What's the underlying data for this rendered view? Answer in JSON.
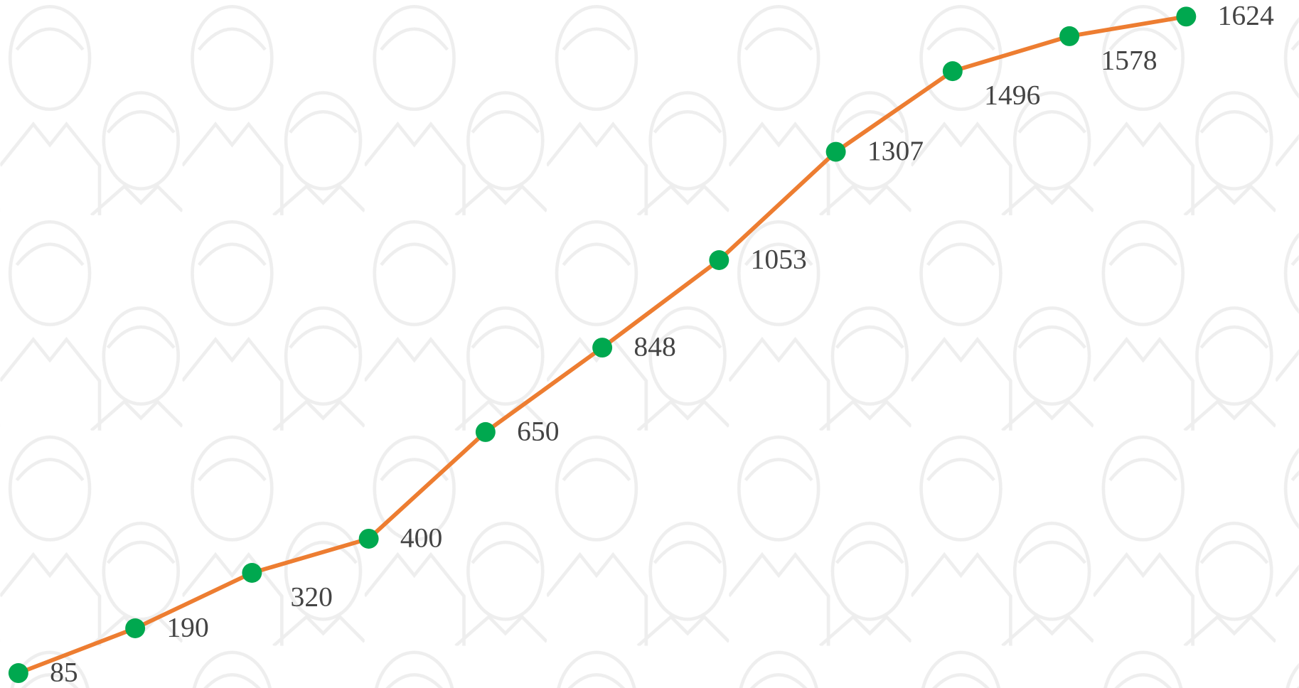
{
  "chart_data": {
    "type": "line",
    "values": [
      85,
      190,
      320,
      400,
      650,
      848,
      1053,
      1307,
      1496,
      1578,
      1624
    ],
    "color": "#ed7d31",
    "marker_color": "#00a84f"
  }
}
